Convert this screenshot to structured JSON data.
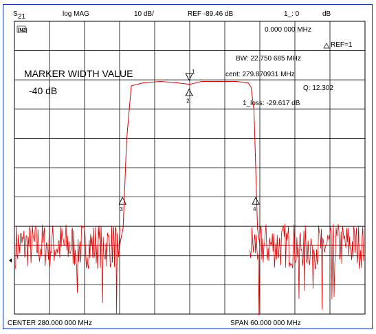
{
  "header": {
    "param": "S",
    "param_sub": "21",
    "format": "log MAG",
    "scale": "10 dB/",
    "ref": "REF -89.46 dB",
    "marker_readout": "1_: 0",
    "marker_unit": "dB"
  },
  "status_icon": "[N2]",
  "annotations": {
    "marker_freq": "0.000 000 MHz",
    "ref_marker": "REF=1",
    "bw": "BW:  22.750 685 MHz",
    "cent": "cent:  279.870931 MHz",
    "q": "Q: 12.302",
    "loss": "1_loss: -29.617 dB",
    "marker_width_title": "MARKER WIDTH VALUE",
    "marker_width_value": "-40 dB"
  },
  "footer": {
    "center": "CENTER  280.000 000 MHz",
    "span": "SPAN  60.000 000 MHz"
  },
  "markers": [
    {
      "label": "1",
      "freq_mhz": 279.9,
      "level_db": -29.6
    },
    {
      "label": "2",
      "freq_mhz": 279.9,
      "level_db": -32.6
    },
    {
      "label": "3",
      "freq_mhz": 268.5,
      "level_db": -69.6
    },
    {
      "label": "4",
      "freq_mhz": 291.3,
      "level_db": -69.6
    }
  ],
  "colors": {
    "trace": "#e00000",
    "grid": "#000000",
    "frame": "#1030c0"
  },
  "chart_data": {
    "type": "line",
    "title": "",
    "xlabel": "",
    "ylabel": "",
    "xlim": [
      250,
      310
    ],
    "ylim": [
      -109.46,
      -9.46
    ],
    "grid": true,
    "series": [
      {
        "x": [
          250,
          260,
          265,
          267,
          268,
          268.6,
          269.2,
          270,
          272,
          275,
          278,
          280,
          282,
          285,
          288,
          290,
          290.5,
          291,
          291.3,
          291.6,
          292,
          293,
          295,
          300,
          305,
          310
        ],
        "y": [
          -86,
          -86,
          -86,
          -86,
          -86,
          -80,
          -50,
          -31.5,
          -30.5,
          -30,
          -30.5,
          -31,
          -30,
          -30,
          -30,
          -30.5,
          -32,
          -40,
          -60,
          -80,
          -86,
          -86,
          -86,
          -86,
          -86,
          -86
        ]
      }
    ]
  }
}
